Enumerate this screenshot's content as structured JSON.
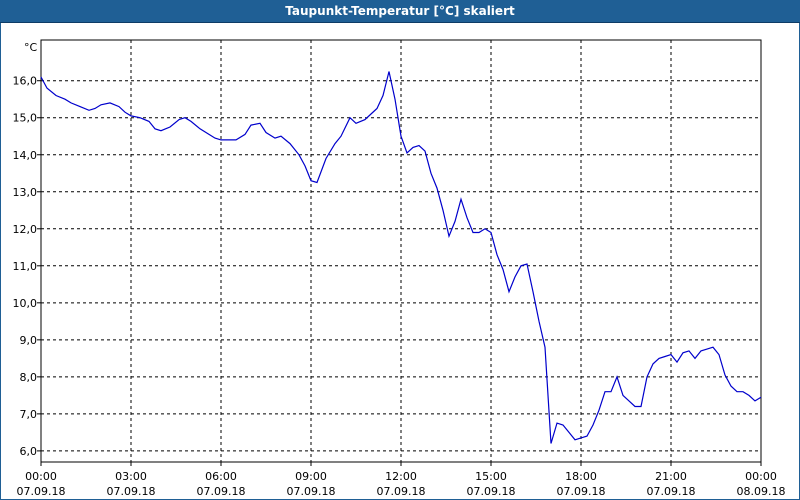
{
  "window": {
    "title": "Taupunkt-Temperatur [°C] skaliert"
  },
  "colors": {
    "titlebar": "#1f5f95",
    "line": "#0000cc",
    "grid": "#000000"
  },
  "chart_data": {
    "type": "line",
    "title": "Taupunkt-Temperatur [°C] skaliert",
    "ylabel": "°C",
    "xlabel": "",
    "ylim": [
      5.7,
      17.1
    ],
    "xlim": [
      0,
      24
    ],
    "grid": true,
    "y_ticks": [
      "6,0",
      "7,0",
      "8,0",
      "9,0",
      "10,0",
      "11,0",
      "12,0",
      "13,0",
      "14,0",
      "15,0",
      "16,0"
    ],
    "x_ticks": [
      {
        "time": "00:00",
        "date": "07.09.18"
      },
      {
        "time": "03:00",
        "date": "07.09.18"
      },
      {
        "time": "06:00",
        "date": "07.09.18"
      },
      {
        "time": "09:00",
        "date": "07.09.18"
      },
      {
        "time": "12:00",
        "date": "07.09.18"
      },
      {
        "time": "15:00",
        "date": "07.09.18"
      },
      {
        "time": "18:00",
        "date": "07.09.18"
      },
      {
        "time": "21:00",
        "date": "07.09.18"
      },
      {
        "time": "00:00",
        "date": "08.09.18"
      }
    ],
    "series": [
      {
        "x": [
          0,
          0.2,
          0.5,
          0.8,
          1.0,
          1.3,
          1.6,
          1.8,
          2.0,
          2.3,
          2.6,
          2.8,
          3.0,
          3.3,
          3.6,
          3.8,
          4.0,
          4.3,
          4.6,
          4.8,
          5.0,
          5.3,
          5.6,
          5.8,
          6.0,
          6.2,
          6.5,
          6.8,
          7.0,
          7.3,
          7.5,
          7.8,
          8.0,
          8.3,
          8.6,
          8.8,
          9.0,
          9.2,
          9.5,
          9.8,
          10.0,
          10.3,
          10.5,
          10.8,
          11.0,
          11.2,
          11.4,
          11.6,
          11.8,
          12.0,
          12.2,
          12.4,
          12.6,
          12.8,
          13.0,
          13.2,
          13.4,
          13.6,
          13.8,
          14.0,
          14.2,
          14.4,
          14.6,
          14.8,
          15.0,
          15.2,
          15.4,
          15.6,
          15.8,
          16.0,
          16.2,
          16.4,
          16.6,
          16.8,
          17.0,
          17.2,
          17.4,
          17.6,
          17.8,
          18.0,
          18.2,
          18.4,
          18.6,
          18.8,
          19.0,
          19.2,
          19.4,
          19.6,
          19.8,
          20.0,
          20.2,
          20.4,
          20.6,
          20.8,
          21.0,
          21.2,
          21.4,
          21.6,
          21.8,
          22.0,
          22.2,
          22.4,
          22.6,
          22.8,
          23.0,
          23.2,
          23.4,
          23.6,
          23.8,
          24.0
        ],
        "y": [
          16.1,
          15.8,
          15.6,
          15.5,
          15.4,
          15.3,
          15.2,
          15.25,
          15.35,
          15.4,
          15.3,
          15.15,
          15.05,
          15.0,
          14.9,
          14.7,
          14.65,
          14.75,
          14.95,
          15.0,
          14.9,
          14.7,
          14.55,
          14.45,
          14.4,
          14.4,
          14.4,
          14.55,
          14.8,
          14.85,
          14.6,
          14.45,
          14.5,
          14.3,
          14.0,
          13.7,
          13.3,
          13.25,
          13.9,
          14.3,
          14.5,
          15.0,
          14.85,
          14.95,
          15.1,
          15.25,
          15.6,
          16.25,
          15.5,
          14.5,
          14.05,
          14.2,
          14.25,
          14.1,
          13.5,
          13.1,
          12.5,
          11.8,
          12.2,
          12.8,
          12.3,
          11.9,
          11.9,
          12.0,
          11.9,
          11.3,
          10.9,
          10.3,
          10.7,
          11.0,
          11.05,
          10.3,
          9.5,
          8.8,
          6.2,
          6.75,
          6.7,
          6.5,
          6.3,
          6.35,
          6.4,
          6.7,
          7.1,
          7.6,
          7.6,
          8.0,
          7.5,
          7.35,
          7.2,
          7.2,
          8.0,
          8.35,
          8.5,
          8.55,
          8.6,
          8.4,
          8.65,
          8.7,
          8.5,
          8.7,
          8.75,
          8.8,
          8.6,
          8.05,
          7.75,
          7.6,
          7.6,
          7.5,
          7.35,
          7.45
        ]
      }
    ]
  }
}
